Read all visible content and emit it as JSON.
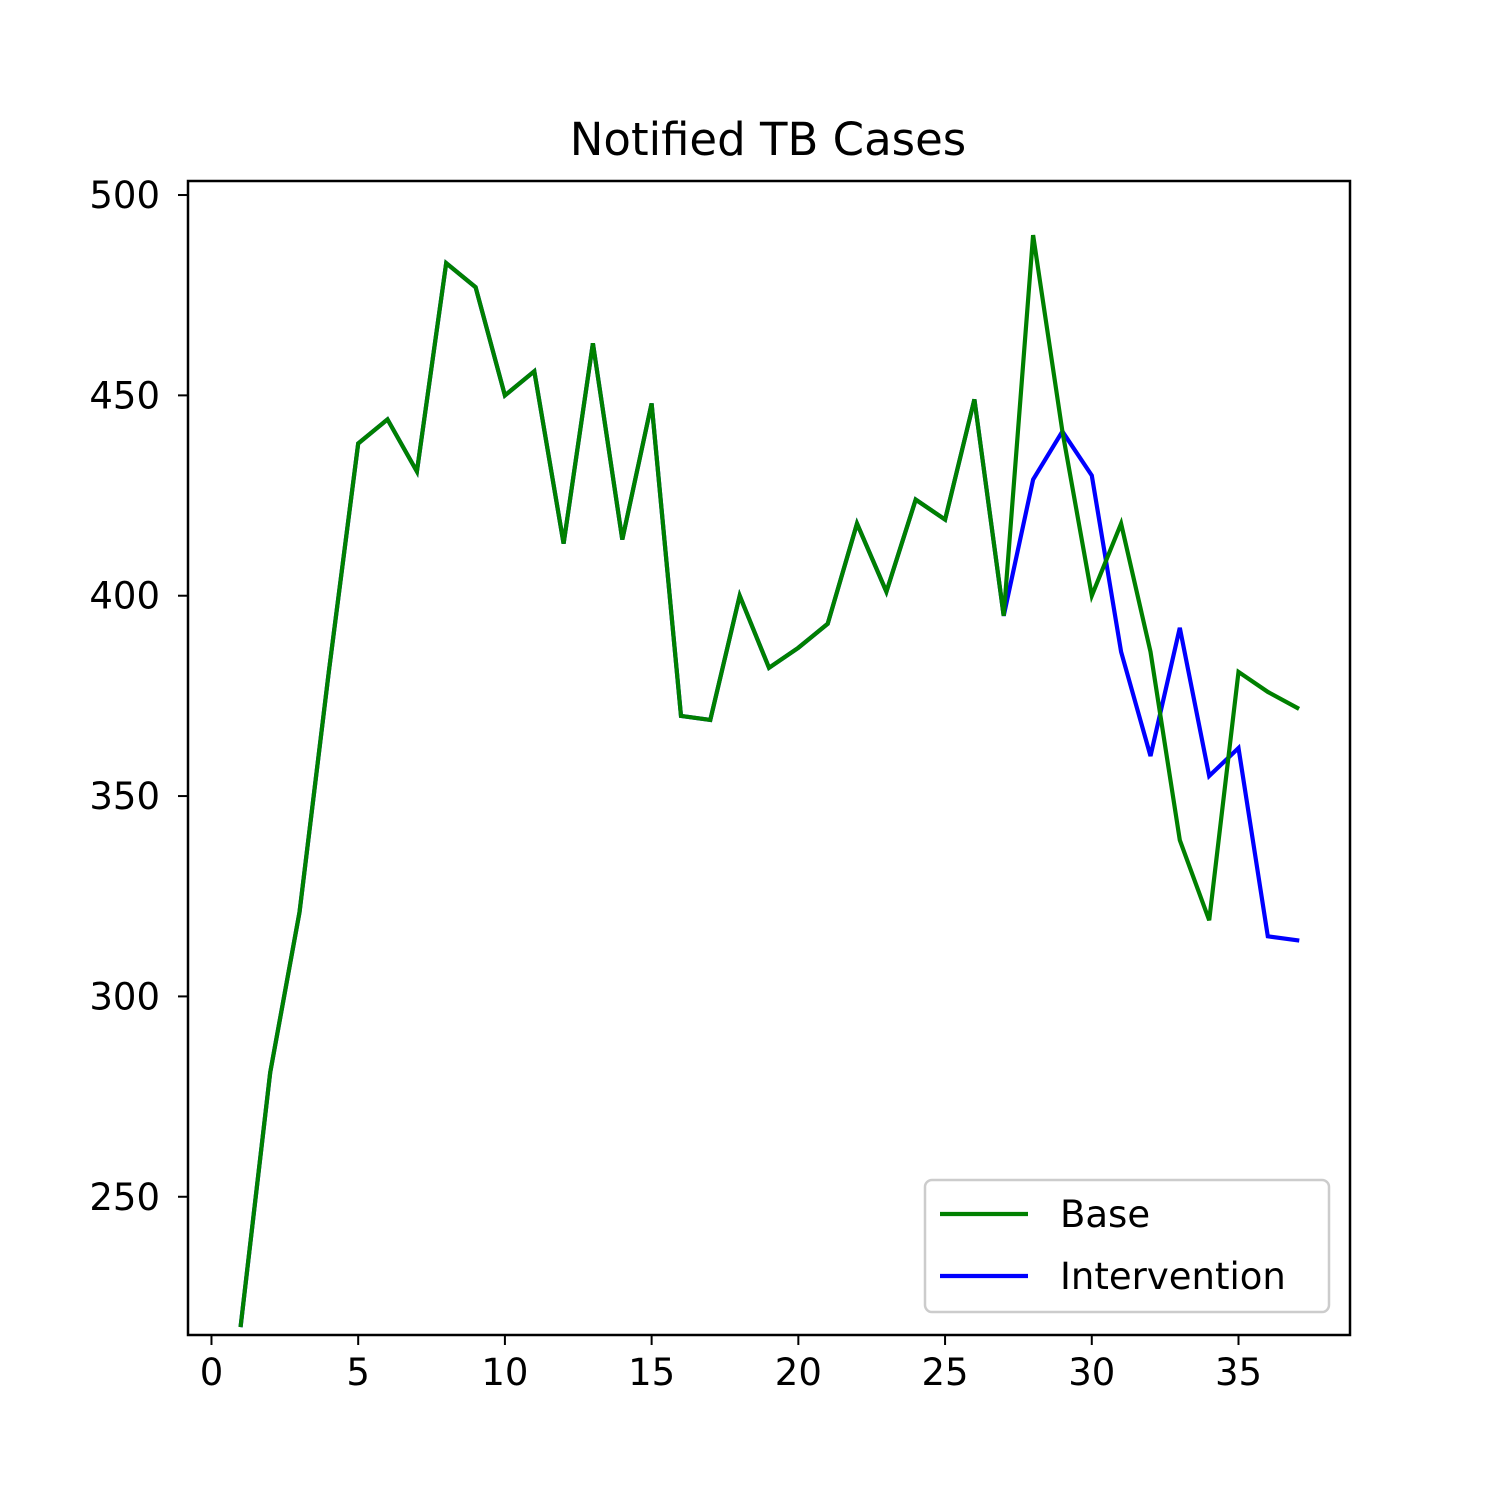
{
  "chart_data": {
    "type": "line",
    "title": "Notified TB Cases",
    "xlabel": "",
    "ylabel": "",
    "xlim": [
      -0.8,
      38.8
    ],
    "ylim": [
      215.5,
      503.5
    ],
    "x_ticks": [
      0,
      5,
      10,
      15,
      20,
      25,
      30,
      35
    ],
    "y_ticks": [
      250,
      300,
      350,
      400,
      450,
      500
    ],
    "grid": false,
    "legend_position": "lower-right",
    "x": [
      1,
      2,
      3,
      4,
      5,
      6,
      7,
      8,
      9,
      10,
      11,
      12,
      13,
      14,
      15,
      16,
      17,
      18,
      19,
      20,
      21,
      22,
      23,
      24,
      25,
      26,
      27,
      28,
      29,
      30,
      31,
      32,
      33,
      34,
      35,
      36,
      37
    ],
    "series": [
      {
        "name": "Base",
        "color": "#008000",
        "values": [
          218,
          281,
          321,
          381,
          438,
          444,
          431,
          483,
          477,
          450,
          456,
          413,
          463,
          414,
          448,
          370,
          369,
          400,
          382,
          387,
          393,
          418,
          401,
          424,
          419,
          449,
          395,
          490,
          441,
          400,
          418,
          386,
          339,
          319,
          381,
          376,
          372
        ]
      },
      {
        "name": "Intervention",
        "color": "#0000ff",
        "values": [
          218,
          281,
          321,
          381,
          438,
          444,
          431,
          483,
          477,
          450,
          456,
          413,
          463,
          414,
          448,
          370,
          369,
          400,
          382,
          387,
          393,
          418,
          401,
          424,
          419,
          449,
          395,
          429,
          441,
          430,
          386,
          360,
          392,
          355,
          362,
          315,
          314
        ]
      }
    ],
    "draw_order": [
      1,
      0
    ]
  }
}
